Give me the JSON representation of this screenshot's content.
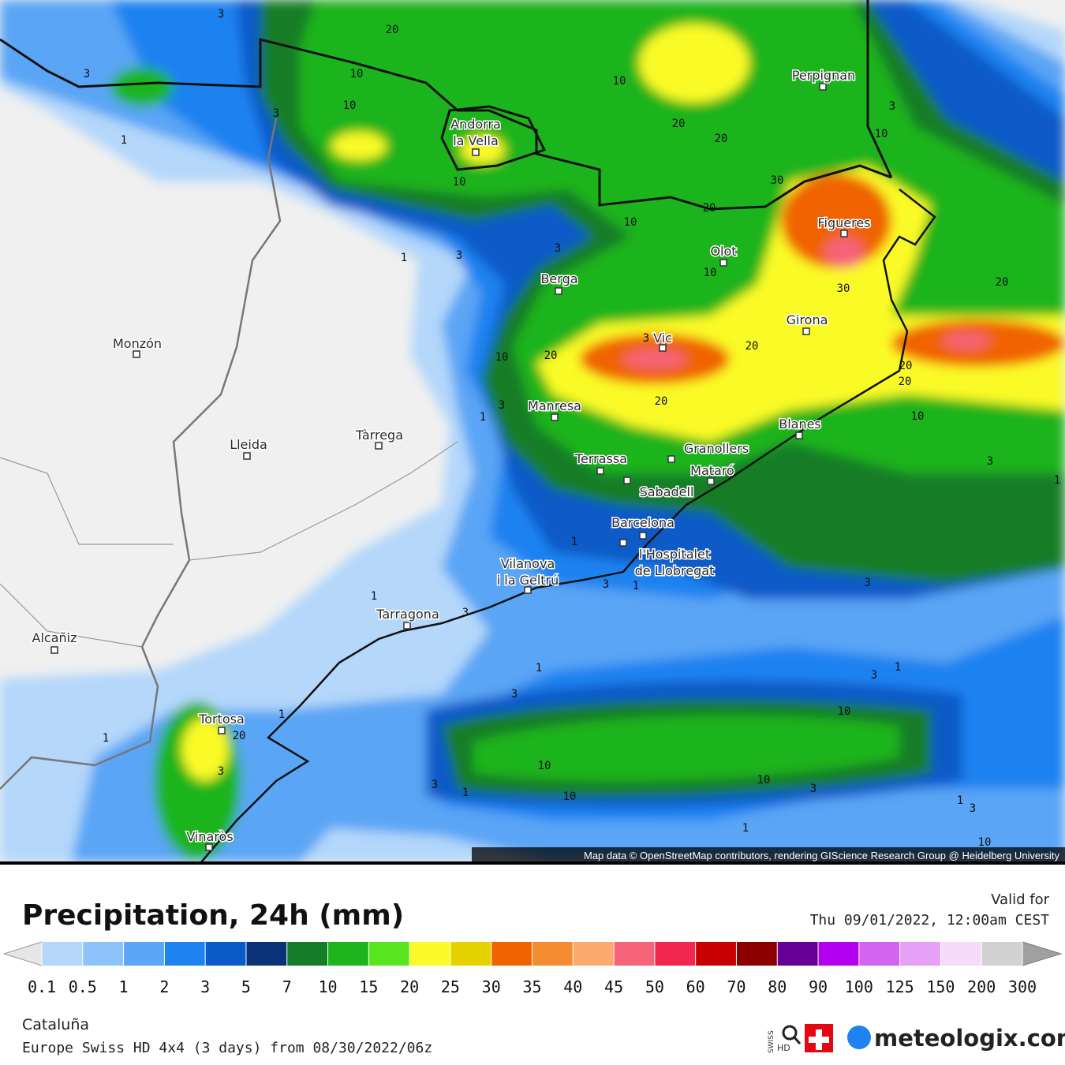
{
  "map": {
    "attribution": "Map data © OpenStreetMap contributors, rendering GIScience Research Group @ Heidelberg University",
    "cities": [
      {
        "lines": [
          "Perpignan"
        ]
      },
      {
        "lines": [
          "Andorra",
          "la Vella"
        ]
      },
      {
        "lines": [
          "Figueres"
        ]
      },
      {
        "lines": [
          "Olot"
        ]
      },
      {
        "lines": [
          "Berga"
        ]
      },
      {
        "lines": [
          "Girona"
        ]
      },
      {
        "lines": [
          "Monzón"
        ]
      },
      {
        "lines": [
          "Vic"
        ]
      },
      {
        "lines": [
          "Manresa"
        ]
      },
      {
        "lines": [
          "Blanes"
        ]
      },
      {
        "lines": [
          "Tàrrega"
        ]
      },
      {
        "lines": [
          "Lleida"
        ]
      },
      {
        "lines": [
          "Granollers"
        ]
      },
      {
        "lines": [
          "Terrassa"
        ]
      },
      {
        "lines": [
          "Mataró"
        ]
      },
      {
        "lines": [
          "Sabadell"
        ]
      },
      {
        "lines": [
          "Barcelona"
        ]
      },
      {
        "lines": [
          "l'Hospitalet",
          "de Llobregat"
        ]
      },
      {
        "lines": [
          "Vilanova",
          "i la Geltrú"
        ]
      },
      {
        "lines": [
          "Tarragona"
        ]
      },
      {
        "lines": [
          "Alcañiz"
        ]
      },
      {
        "lines": [
          "Tortosa"
        ]
      },
      {
        "lines": [
          "Vinaròs"
        ]
      }
    ],
    "contour_labels": [
      20,
      3,
      3,
      10,
      10,
      3,
      1,
      10,
      20,
      20,
      30,
      10,
      3,
      10,
      20,
      10,
      1,
      3,
      3,
      10,
      30,
      20,
      20,
      20,
      10,
      3,
      1,
      20,
      20,
      20,
      10,
      3,
      1,
      1,
      3,
      1,
      3,
      1,
      3,
      1,
      3,
      3,
      1,
      10,
      1,
      20,
      1,
      3,
      10,
      10,
      3,
      3,
      1,
      10,
      1,
      1,
      3,
      10,
      3
    ]
  },
  "footer": {
    "title": "Precipitation, 24h (mm)",
    "valid_label": "Valid for",
    "valid_time": "Thu 09/01/2022, 12:00am CEST",
    "region": "Cataluña",
    "model": "Europe Swiss HD 4x4 (3 days) from 08/30/2022/06z",
    "swiss_hd": [
      "SWISS",
      "HD"
    ],
    "brand": "meteologix.com"
  },
  "legend": {
    "ticks": [
      0.1,
      0.5,
      1,
      2,
      3,
      5,
      7,
      10,
      15,
      20,
      25,
      30,
      35,
      40,
      45,
      50,
      60,
      70,
      80,
      90,
      100,
      125,
      150,
      200,
      300
    ],
    "colors": [
      "#b4d7fa",
      "#8cc3fa",
      "#5aa5f5",
      "#1e82f0",
      "#0a5ac8",
      "#0a3278",
      "#147d28",
      "#1eb41e",
      "#5ae61e",
      "#fafa28",
      "#e6d200",
      "#f06400",
      "#f58c32",
      "#faaa6e",
      "#f56478",
      "#f02850",
      "#c80000",
      "#8c0000",
      "#640096",
      "#b400f0",
      "#d264f0",
      "#e6a0f5",
      "#f5dcfa",
      "#d2d2d2"
    ],
    "under_color": "#e6e6e6",
    "over_color": "#a0a0a0"
  }
}
